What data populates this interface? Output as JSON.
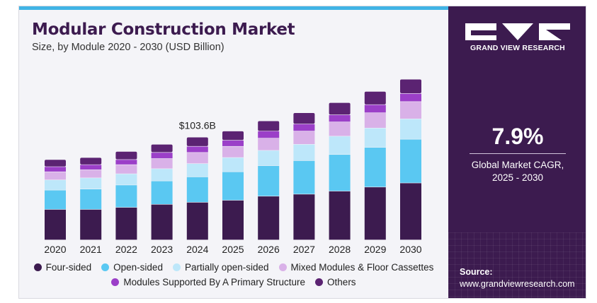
{
  "header": {
    "title": "Modular Construction Market",
    "subtitle": "Size, by Module 2020 - 2030 (USD Billion)"
  },
  "chart_data": {
    "type": "bar",
    "stacked": true,
    "categories": [
      "2020",
      "2021",
      "2022",
      "2023",
      "2024",
      "2025",
      "2026",
      "2027",
      "2028",
      "2029",
      "2030"
    ],
    "series": [
      {
        "name": "Four-sided",
        "color": "#3c1b4f",
        "values": [
          30,
          30,
          32,
          35,
          37,
          39,
          43,
          45,
          48,
          52,
          56
        ]
      },
      {
        "name": "Open-sided",
        "color": "#5ac8f2",
        "values": [
          19,
          20,
          22,
          23,
          25,
          28,
          30,
          33,
          36,
          39,
          43
        ]
      },
      {
        "name": "Partially open-sided",
        "color": "#bde7fa",
        "values": [
          10,
          11,
          11,
          12,
          13,
          14,
          15,
          16,
          18,
          19,
          20
        ]
      },
      {
        "name": "Mixed Modules & Floor Cassettes",
        "color": "#d9b1e8",
        "values": [
          8,
          8,
          9,
          10,
          11,
          11,
          12,
          13,
          14,
          15,
          17
        ]
      },
      {
        "name": "Modules Supported By A Primary Structure",
        "color": "#9b3fc8",
        "values": [
          5,
          5,
          5,
          6,
          6,
          6,
          7,
          7,
          7,
          8,
          8
        ]
      },
      {
        "name": "Others",
        "color": "#5b2372",
        "values": [
          7,
          7,
          8,
          8,
          9,
          9,
          10,
          11,
          12,
          13,
          14
        ]
      }
    ],
    "ylim": [
      0,
      175
    ],
    "grid": false,
    "legend_position": "bottom",
    "annotations": [
      {
        "category": "2024",
        "text": "$103.6B"
      }
    ]
  },
  "panel": {
    "logo_text": "GRAND VIEW RESEARCH",
    "cagr_value": "7.9%",
    "cagr_label_line1": "Global Market CAGR,",
    "cagr_label_line2": "2025 - 2030",
    "source_label": "Source:",
    "source_url": "www.grandviewresearch.com"
  },
  "colors": {
    "accent_bar": "#40b4e5",
    "panel_bg": "#3c1b4f",
    "title": "#3c1b4f"
  }
}
